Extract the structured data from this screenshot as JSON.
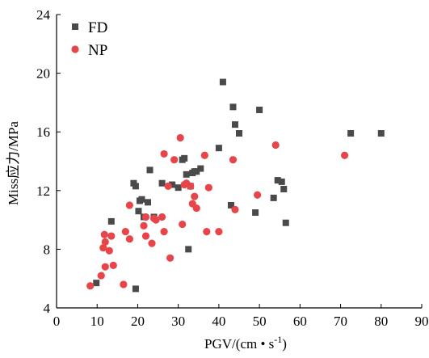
{
  "chart_data": {
    "type": "scatter",
    "title": "",
    "xlabel": "PGV/(cm • s",
    "xlabel_sup": "-1",
    "xlabel_suffix": ")",
    "ylabel": "Miss应力/MPa",
    "xlim": [
      0,
      90
    ],
    "ylim": [
      4,
      24
    ],
    "xticks": [
      0,
      10,
      20,
      30,
      40,
      50,
      60,
      70,
      80,
      90
    ],
    "yticks": [
      4,
      8,
      12,
      16,
      20,
      24
    ],
    "grid": false,
    "legend_position": "top-left",
    "series": [
      {
        "name": "FD",
        "marker": "square",
        "color": "#4a4a4a",
        "points": [
          [
            9.8,
            5.7
          ],
          [
            13.5,
            9.9
          ],
          [
            19.5,
            5.3
          ],
          [
            19.0,
            12.5
          ],
          [
            19.5,
            12.3
          ],
          [
            20.2,
            10.6
          ],
          [
            20.5,
            11.3
          ],
          [
            21.0,
            11.4
          ],
          [
            21.5,
            10.2
          ],
          [
            22.5,
            11.2
          ],
          [
            23.0,
            13.4
          ],
          [
            24.0,
            10.2
          ],
          [
            26.0,
            12.5
          ],
          [
            28.5,
            12.4
          ],
          [
            30.0,
            12.2
          ],
          [
            31.0,
            14.1
          ],
          [
            31.5,
            14.2
          ],
          [
            32.0,
            13.1
          ],
          [
            32.5,
            8.0
          ],
          [
            33.0,
            12.3
          ],
          [
            33.5,
            13.2
          ],
          [
            34.0,
            13.3
          ],
          [
            34.5,
            13.3
          ],
          [
            35.5,
            13.5
          ],
          [
            40.0,
            14.9
          ],
          [
            41.0,
            19.4
          ],
          [
            43.0,
            11.0
          ],
          [
            43.5,
            17.7
          ],
          [
            44.0,
            16.5
          ],
          [
            45.0,
            15.9
          ],
          [
            49.0,
            10.5
          ],
          [
            50.0,
            17.5
          ],
          [
            53.5,
            11.5
          ],
          [
            54.5,
            12.7
          ],
          [
            55.5,
            12.6
          ],
          [
            56.0,
            12.1
          ],
          [
            56.5,
            9.8
          ],
          [
            72.5,
            15.9
          ],
          [
            80.0,
            15.9
          ]
        ]
      },
      {
        "name": "NP",
        "marker": "circle",
        "color": "#e8454b",
        "points": [
          [
            8.3,
            5.5
          ],
          [
            11.0,
            6.2
          ],
          [
            11.5,
            8.1
          ],
          [
            11.8,
            9.0
          ],
          [
            12.0,
            6.8
          ],
          [
            12.0,
            8.5
          ],
          [
            13.0,
            7.9
          ],
          [
            13.5,
            8.9
          ],
          [
            14.0,
            6.9
          ],
          [
            16.5,
            5.6
          ],
          [
            17.0,
            9.2
          ],
          [
            18.0,
            8.7
          ],
          [
            18.0,
            11.0
          ],
          [
            21.5,
            9.6
          ],
          [
            22.0,
            10.2
          ],
          [
            22.0,
            8.9
          ],
          [
            23.5,
            8.4
          ],
          [
            24.0,
            10.1
          ],
          [
            24.5,
            10.0
          ],
          [
            26.0,
            10.2
          ],
          [
            26.5,
            14.5
          ],
          [
            26.5,
            9.2
          ],
          [
            27.5,
            12.3
          ],
          [
            28.0,
            7.4
          ],
          [
            29.0,
            14.1
          ],
          [
            30.5,
            15.6
          ],
          [
            31.0,
            9.7
          ],
          [
            31.5,
            12.4
          ],
          [
            32.0,
            12.5
          ],
          [
            33.0,
            12.3
          ],
          [
            33.5,
            11.1
          ],
          [
            34.0,
            11.6
          ],
          [
            34.5,
            10.8
          ],
          [
            36.5,
            14.4
          ],
          [
            37.0,
            9.2
          ],
          [
            37.5,
            12.2
          ],
          [
            40.0,
            9.2
          ],
          [
            43.5,
            14.1
          ],
          [
            44.0,
            10.7
          ],
          [
            49.5,
            11.7
          ],
          [
            54.0,
            15.1
          ],
          [
            71.0,
            14.4
          ]
        ]
      }
    ]
  }
}
